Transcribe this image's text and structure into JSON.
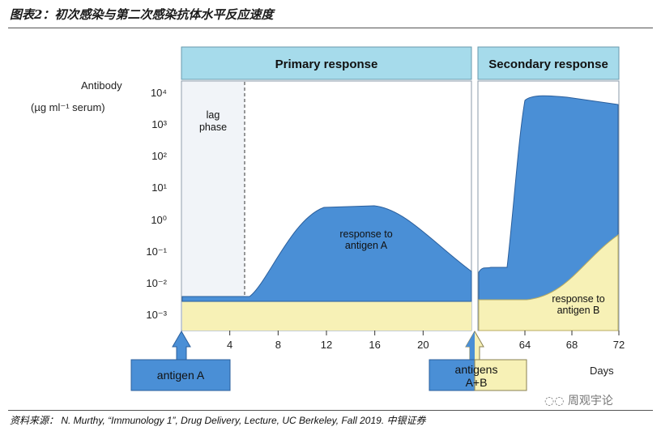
{
  "figure": {
    "title": "图表2：初次感染与第二次感染抗体水平反应速度",
    "source": "资料来源：N. Murthy, “Immunology 1”, Drug Delivery, Lecture, UC Berkeley, Fall 2019. 中银证券",
    "source_prefix": "资料来源：",
    "source_body": " N. Murthy, “Immunology 1”, Drug Delivery, Lecture, UC Berkeley, Fall 2019. ",
    "source_suffix": "中银证券",
    "watermark": "周观宇论"
  },
  "diagram": {
    "y_axis_label_line1": "Antibody",
    "y_axis_label_line2": "(µg ml⁻¹ serum)",
    "y_ticks": [
      "10⁴",
      "10³",
      "10²",
      "10¹",
      "10⁰",
      "10⁻¹",
      "10⁻²",
      "10⁻³"
    ],
    "x_ticks": [
      {
        "label": "4",
        "day": 4
      },
      {
        "label": "8",
        "day": 8
      },
      {
        "label": "12",
        "day": 12
      },
      {
        "label": "16",
        "day": 16
      },
      {
        "label": "20",
        "day": 20
      },
      {
        "label": "64",
        "day": 64
      },
      {
        "label": "68",
        "day": 68
      },
      {
        "label": "72",
        "day": 72
      }
    ],
    "x_axis_label": "Days",
    "primary_header": "Primary response",
    "secondary_header": "Secondary response",
    "lag_phase_line1": "lag",
    "lag_phase_line2": "phase",
    "response_a_line1": "response to",
    "response_a_line2": "antigen A",
    "response_b_line1": "response to",
    "response_b_line2": "antigen B",
    "antigen_a_box": "antigen A",
    "antigens_ab_line1": "antigens",
    "antigens_ab_line2": "A+B",
    "colors": {
      "header_fill": "#a6dbeb",
      "response_blue": "#4a8fd6",
      "response_yellow": "#f7f1b6",
      "lag_fill": "#f1f4f8",
      "panel_fill": "#ffffff"
    }
  }
}
